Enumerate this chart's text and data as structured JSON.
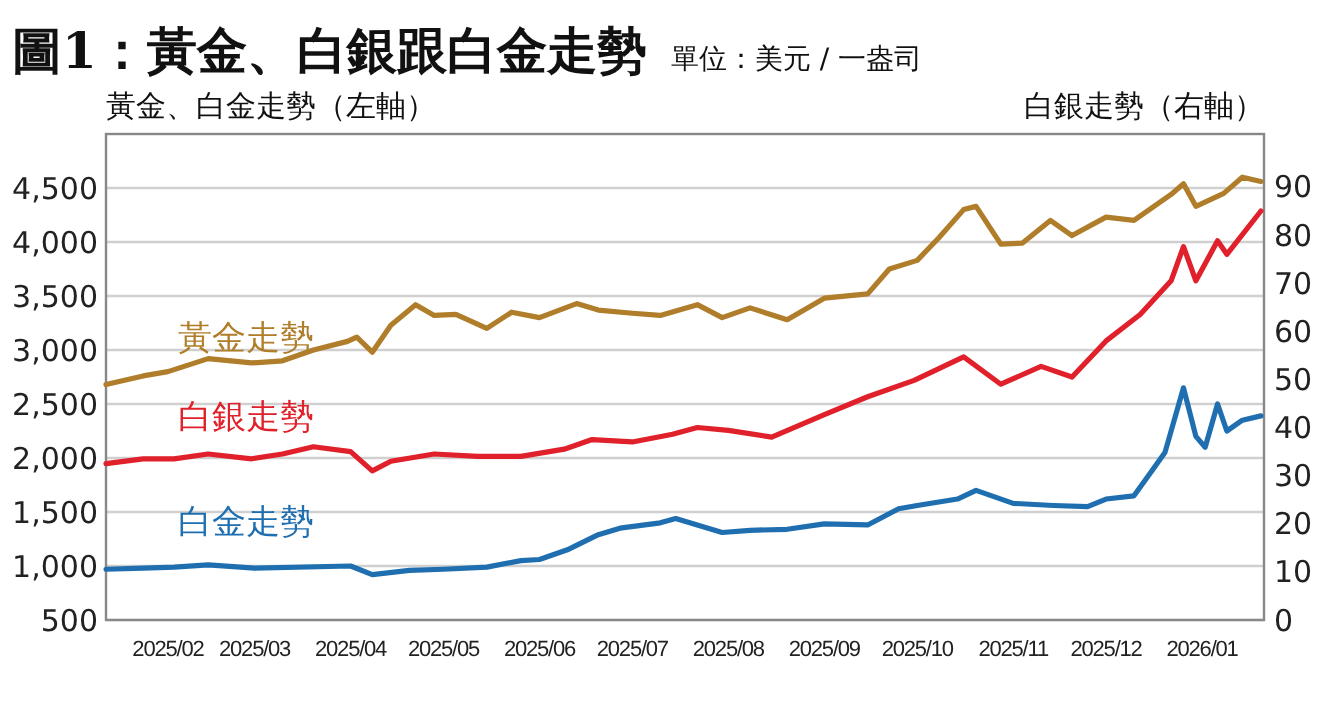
{
  "chart_data": {
    "type": "line",
    "title": "圖1：黃金、白銀跟白金走勢",
    "subtitle": "單位：美元 / 一盎司",
    "ylabel": "黃金、白金走勢（左軸）",
    "y2label": "白銀走勢（右軸）",
    "xlim": [
      "2025-01-12",
      "2026-01-21"
    ],
    "xticks": [
      {
        "value": "2025-02-01",
        "label": "2025/02"
      },
      {
        "value": "2025-03-01",
        "label": "2025/03"
      },
      {
        "value": "2025-04-01",
        "label": "2025/04"
      },
      {
        "value": "2025-05-01",
        "label": "2025/05"
      },
      {
        "value": "2025-06-01",
        "label": "2025/06"
      },
      {
        "value": "2025-07-01",
        "label": "2025/07"
      },
      {
        "value": "2025-08-01",
        "label": "2025/08"
      },
      {
        "value": "2025-09-01",
        "label": "2025/09"
      },
      {
        "value": "2025-10-01",
        "label": "2025/10"
      },
      {
        "value": "2025-11-01",
        "label": "2025/11"
      },
      {
        "value": "2025-12-01",
        "label": "2025/12"
      },
      {
        "value": "2026-01-01",
        "label": "2026/01"
      }
    ],
    "ylim": [
      500,
      5000
    ],
    "yticks": [
      {
        "value": 500,
        "label": "500"
      },
      {
        "value": 1000,
        "label": "1,000"
      },
      {
        "value": 1500,
        "label": "1,500"
      },
      {
        "value": 2000,
        "label": "2,000"
      },
      {
        "value": 2500,
        "label": "2,500"
      },
      {
        "value": 3000,
        "label": "3,000"
      },
      {
        "value": 3500,
        "label": "3,500"
      },
      {
        "value": 4000,
        "label": "4,000"
      },
      {
        "value": 4500,
        "label": "4,500"
      }
    ],
    "y2lim": [
      0,
      101
    ],
    "y2ticks": [
      0,
      10,
      20,
      30,
      40,
      50,
      60,
      70,
      80,
      90
    ],
    "grid": "y",
    "marker": "none",
    "line_style": "solid",
    "series": [
      {
        "name": "黃金走勢",
        "color": "#b07d2a",
        "x": [
          "2025-01-12",
          "2025-01-24",
          "2025-02-01",
          "2025-02-14",
          "2025-02-28",
          "2025-03-10",
          "2025-03-20",
          "2025-03-31",
          "2025-04-03",
          "2025-04-08",
          "2025-04-14",
          "2025-04-22",
          "2025-04-28",
          "2025-05-05",
          "2025-05-15",
          "2025-05-23",
          "2025-06-01",
          "2025-06-13",
          "2025-06-20",
          "2025-07-01",
          "2025-07-10",
          "2025-07-22",
          "2025-07-30",
          "2025-08-08",
          "2025-08-20",
          "2025-09-01",
          "2025-09-15",
          "2025-09-22",
          "2025-10-01",
          "2025-10-08",
          "2025-10-16",
          "2025-10-20",
          "2025-10-28",
          "2025-11-04",
          "2025-11-13",
          "2025-11-20",
          "2025-12-01",
          "2025-12-10",
          "2025-12-22",
          "2025-12-26",
          "2025-12-30",
          "2026-01-08",
          "2026-01-14",
          "2026-01-20"
        ],
        "values": [
          2680,
          2760,
          2800,
          2920,
          2880,
          2900,
          3000,
          3080,
          3120,
          2980,
          3230,
          3420,
          3320,
          3330,
          3200,
          3350,
          3300,
          3430,
          3370,
          3340,
          3320,
          3420,
          3300,
          3390,
          3280,
          3480,
          3520,
          3750,
          3830,
          4040,
          4300,
          4330,
          3980,
          3990,
          4200,
          4060,
          4230,
          4200,
          4440,
          4540,
          4330,
          4450,
          4600,
          4560
        ]
      },
      {
        "name": "白銀走勢",
        "color": "#e0202a",
        "axis": "y2",
        "x": [
          "2025-01-12",
          "2025-01-24",
          "2025-02-03",
          "2025-02-14",
          "2025-02-28",
          "2025-03-10",
          "2025-03-20",
          "2025-04-01",
          "2025-04-08",
          "2025-04-14",
          "2025-04-28",
          "2025-05-12",
          "2025-05-26",
          "2025-06-09",
          "2025-06-18",
          "2025-07-01",
          "2025-07-14",
          "2025-07-22",
          "2025-08-01",
          "2025-08-15",
          "2025-09-01",
          "2025-09-15",
          "2025-09-30",
          "2025-10-16",
          "2025-10-28",
          "2025-11-10",
          "2025-11-20",
          "2025-12-01",
          "2025-12-12",
          "2025-12-22",
          "2025-12-26",
          "2025-12-30",
          "2026-01-06",
          "2026-01-09",
          "2026-01-20"
        ],
        "values": [
          32.5,
          33.5,
          33.5,
          34.5,
          33.5,
          34.5,
          36,
          35,
          31,
          33,
          34.5,
          34,
          34,
          35.5,
          37.5,
          37,
          38.6,
          40,
          39.4,
          38,
          42.7,
          46.4,
          49.8,
          54.7,
          49,
          52.7,
          50.5,
          58,
          63.5,
          70.5,
          77.6,
          70.5,
          78.8,
          76,
          85
        ]
      },
      {
        "name": "白金走勢",
        "color": "#1f6fb0",
        "x": [
          "2025-01-12",
          "2025-01-24",
          "2025-02-03",
          "2025-02-14",
          "2025-03-01",
          "2025-04-01",
          "2025-04-08",
          "2025-04-20",
          "2025-05-01",
          "2025-05-15",
          "2025-05-26",
          "2025-06-01",
          "2025-06-10",
          "2025-06-20",
          "2025-06-27",
          "2025-07-10",
          "2025-07-15",
          "2025-07-30",
          "2025-08-08",
          "2025-08-20",
          "2025-09-01",
          "2025-09-15",
          "2025-09-25",
          "2025-10-01",
          "2025-10-14",
          "2025-10-20",
          "2025-11-01",
          "2025-11-14",
          "2025-11-25",
          "2025-12-01",
          "2025-12-10",
          "2025-12-15",
          "2025-12-20",
          "2025-12-26",
          "2025-12-30",
          "2026-01-02",
          "2026-01-06",
          "2026-01-09",
          "2026-01-14",
          "2026-01-20"
        ],
        "values": [
          970,
          980,
          990,
          1010,
          980,
          1000,
          920,
          960,
          970,
          990,
          1050,
          1060,
          1150,
          1290,
          1350,
          1400,
          1440,
          1310,
          1330,
          1340,
          1390,
          1380,
          1530,
          1560,
          1620,
          1700,
          1580,
          1560,
          1550,
          1620,
          1650,
          1850,
          2050,
          2650,
          2200,
          2100,
          2500,
          2250,
          2350,
          2390
        ]
      }
    ]
  }
}
